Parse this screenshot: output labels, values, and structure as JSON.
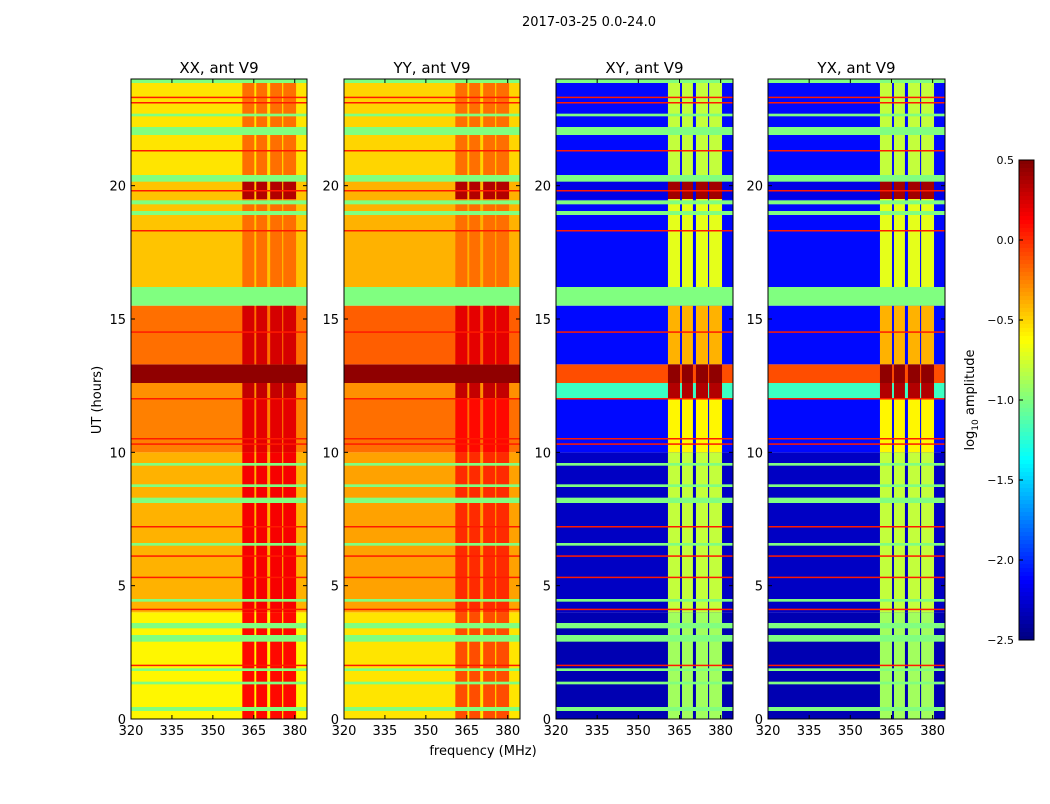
{
  "chart_data": {
    "type": "heatmap",
    "title": "2017-03-25 0.0-24.0",
    "xlabel": "frequency (MHz)",
    "ylabel": "UT (hours)",
    "colorbar_label_parts": [
      "log",
      "10",
      " amplitude"
    ],
    "xlim": [
      320,
      384.5
    ],
    "ylim": [
      0,
      24
    ],
    "clim": [
      -2.5,
      0.5
    ],
    "colormap": "jet",
    "xticks": [
      "320",
      "335",
      "350",
      "365",
      "380"
    ],
    "xtick_values": [
      320,
      335,
      350,
      365,
      380
    ],
    "yticks": [
      "0",
      "5",
      "10",
      "15",
      "20"
    ],
    "ytick_values": [
      0,
      5,
      10,
      15,
      20
    ],
    "cbar_ticks": [
      "0.5",
      "0.0",
      "−0.5",
      "−1.0",
      "−1.5",
      "−2.0",
      "−2.5"
    ],
    "cbar_tick_values": [
      0.5,
      0.0,
      -0.5,
      -1.0,
      -1.5,
      -2.0,
      -2.5
    ],
    "rfi_channels_mhz": [
      [
        360.8,
        365.2
      ],
      [
        365.9,
        369.9
      ],
      [
        371.0,
        375.4
      ],
      [
        375.8,
        380.5
      ]
    ],
    "flag_value": -1.0,
    "flagged_hours": [
      [
        0.3,
        0.45
      ],
      [
        1.3,
        1.4
      ],
      [
        1.8,
        1.9
      ],
      [
        2.9,
        3.15
      ],
      [
        3.4,
        3.6
      ],
      [
        4.4,
        4.5
      ],
      [
        6.5,
        6.6
      ],
      [
        8.1,
        8.3
      ],
      [
        8.7,
        8.8
      ],
      [
        9.5,
        9.6
      ],
      [
        15.5,
        16.2
      ],
      [
        18.9,
        19.05
      ],
      [
        19.3,
        19.45
      ],
      [
        20.15,
        20.4
      ],
      [
        21.9,
        22.2
      ],
      [
        22.6,
        22.7
      ],
      [
        23.85,
        24
      ]
    ],
    "spike_value": 0.05,
    "spike_hours": [
      2.0,
      4.1,
      5.3,
      6.1,
      7.2,
      10.3,
      10.5,
      12.0,
      14.5,
      18.3,
      19.8,
      21.3,
      23.1,
      23.3
    ],
    "panels": [
      {
        "title": "XX, ant V9",
        "segments": [
          [
            0,
            4,
            -0.6,
            0.1
          ],
          [
            4,
            10,
            -0.4,
            0.15
          ],
          [
            10,
            12,
            -0.25,
            0.2
          ],
          [
            12,
            12.6,
            -0.3,
            0.3
          ],
          [
            12.6,
            13.3,
            0.45,
            0.45
          ],
          [
            13.3,
            15.5,
            -0.2,
            0.25
          ],
          [
            16.2,
            19.5,
            -0.45,
            -0.2
          ],
          [
            19.5,
            20.2,
            -0.45,
            0.35
          ],
          [
            20.2,
            24,
            -0.55,
            -0.2
          ]
        ]
      },
      {
        "title": "YY, ant V9",
        "segments": [
          [
            0,
            4,
            -0.55,
            -0.1
          ],
          [
            4,
            10,
            -0.35,
            0.0
          ],
          [
            10,
            12,
            -0.2,
            0.1
          ],
          [
            12,
            12.6,
            -0.3,
            0.3
          ],
          [
            12.6,
            13.3,
            0.45,
            0.45
          ],
          [
            13.3,
            15.5,
            -0.15,
            0.2
          ],
          [
            16.2,
            19.5,
            -0.4,
            -0.2
          ],
          [
            19.5,
            20.2,
            -0.4,
            0.35
          ],
          [
            20.2,
            24,
            -0.5,
            -0.2
          ]
        ]
      },
      {
        "title": "XY, ant V9",
        "segments": [
          [
            0,
            4,
            -2.35,
            -0.9
          ],
          [
            4,
            10,
            -2.3,
            -0.8
          ],
          [
            10,
            12,
            -2.1,
            -0.6
          ],
          [
            12,
            12.6,
            -1.2,
            0.35
          ],
          [
            12.6,
            13.3,
            -0.1,
            0.45
          ],
          [
            13.3,
            15.5,
            -2.1,
            -0.4
          ],
          [
            16.2,
            19.5,
            -2.1,
            -0.7
          ],
          [
            19.5,
            20.2,
            -2.2,
            0.4
          ],
          [
            20.2,
            24,
            -2.1,
            -0.8
          ]
        ]
      },
      {
        "title": "YX, ant V9",
        "segments": [
          [
            0,
            4,
            -2.35,
            -0.9
          ],
          [
            4,
            10,
            -2.3,
            -0.8
          ],
          [
            10,
            12,
            -2.1,
            -0.6
          ],
          [
            12,
            12.6,
            -1.2,
            0.35
          ],
          [
            12.6,
            13.3,
            -0.1,
            0.45
          ],
          [
            13.3,
            15.5,
            -2.1,
            -0.4
          ],
          [
            16.2,
            19.5,
            -2.1,
            -0.7
          ],
          [
            19.5,
            20.2,
            -2.2,
            0.4
          ],
          [
            20.2,
            24,
            -2.1,
            -0.8
          ]
        ]
      }
    ]
  }
}
